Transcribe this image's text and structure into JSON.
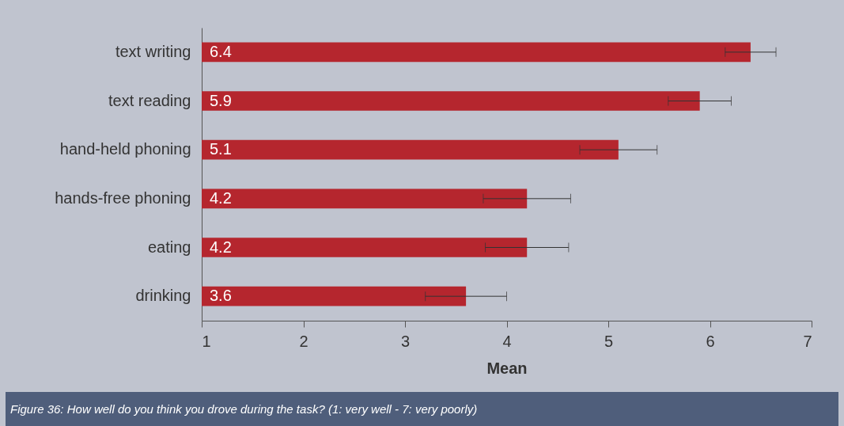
{
  "chart_data": {
    "type": "bar",
    "orientation": "horizontal",
    "xlabel": "Mean",
    "categories": [
      "text writing",
      "text reading",
      "hand-held phoning",
      "hands-free phoning",
      "eating",
      "drinking"
    ],
    "values": [
      6.4,
      5.9,
      5.1,
      4.2,
      4.2,
      3.6
    ],
    "errors": [
      0.25,
      0.31,
      0.38,
      0.43,
      0.41,
      0.4
    ],
    "color": "#b5262e",
    "data_labels": true,
    "xlim": [
      1,
      7
    ],
    "xticks": [
      1,
      2,
      3,
      4,
      5,
      6,
      7
    ],
    "grid": false,
    "annotations": [
      "Figure 36: How well do you think you drove during the task? (1: very well - 7: very poorly)"
    ]
  }
}
